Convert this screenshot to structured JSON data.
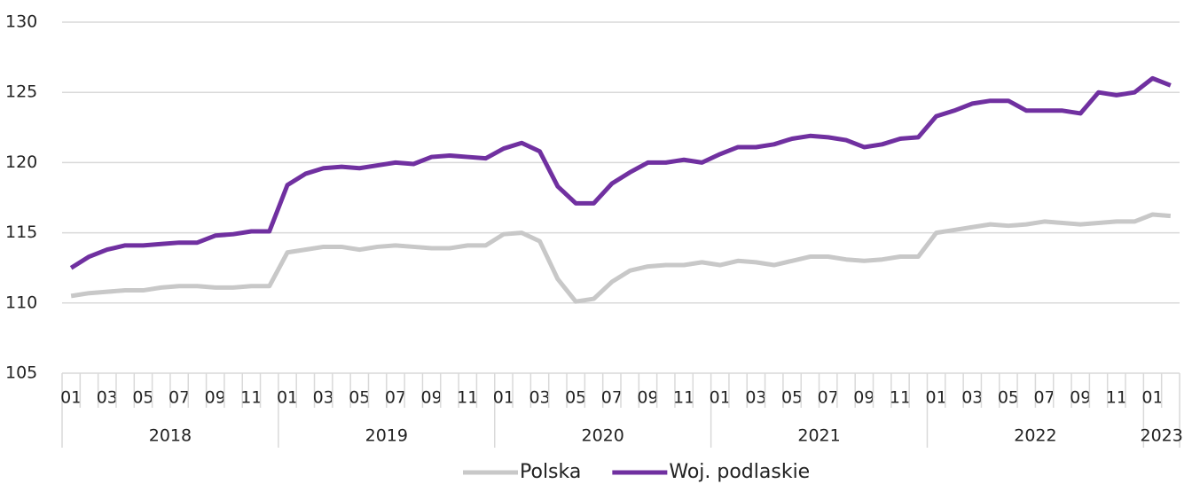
{
  "chart_data": {
    "type": "line",
    "categories": [
      "01",
      null,
      "03",
      null,
      "05",
      null,
      "07",
      null,
      "09",
      null,
      "11",
      null,
      "01",
      null,
      "03",
      null,
      "05",
      null,
      "07",
      null,
      "09",
      null,
      "11",
      null,
      "01",
      null,
      "03",
      null,
      "05",
      null,
      "07",
      null,
      "09",
      null,
      "11",
      null,
      "01",
      null,
      "03",
      null,
      "05",
      null,
      "07",
      null,
      "09",
      null,
      "11",
      null,
      "01",
      null,
      "03",
      null,
      "05",
      null,
      "07",
      null,
      "09",
      null,
      "11",
      null,
      "01",
      null
    ],
    "x_groups": [
      "2018",
      "2019",
      "2020",
      "2021",
      "2022",
      "2023"
    ],
    "series": [
      {
        "name": "Polska",
        "color": "#c8c8c8",
        "values": [
          110.5,
          110.7,
          110.8,
          110.9,
          110.9,
          111.1,
          111.2,
          111.2,
          111.1,
          111.1,
          111.2,
          111.2,
          113.6,
          113.8,
          114.0,
          114.0,
          113.8,
          114.0,
          114.1,
          114.0,
          113.9,
          113.9,
          114.1,
          114.1,
          114.9,
          115.0,
          114.4,
          111.7,
          110.1,
          110.3,
          111.5,
          112.3,
          112.6,
          112.7,
          112.7,
          112.9,
          112.7,
          113.0,
          112.9,
          112.7,
          113.0,
          113.3,
          113.3,
          113.1,
          113.0,
          113.1,
          113.3,
          113.3,
          115.0,
          115.2,
          115.4,
          115.6,
          115.5,
          115.6,
          115.8,
          115.7,
          115.6,
          115.7,
          115.8,
          115.8,
          116.3,
          116.2
        ]
      },
      {
        "name": "Woj. podlaskie",
        "color": "#7030a0",
        "values": [
          112.5,
          113.3,
          113.8,
          114.1,
          114.1,
          114.2,
          114.3,
          114.3,
          114.8,
          114.9,
          115.1,
          115.1,
          118.4,
          119.2,
          119.6,
          119.7,
          119.6,
          119.8,
          120.0,
          119.9,
          120.4,
          120.5,
          120.4,
          120.3,
          121.0,
          121.4,
          120.8,
          118.3,
          117.1,
          117.1,
          118.5,
          119.3,
          120.0,
          120.0,
          120.2,
          120.0,
          120.6,
          121.1,
          121.1,
          121.3,
          121.7,
          121.9,
          121.8,
          121.6,
          121.1,
          121.3,
          121.7,
          121.8,
          123.3,
          123.7,
          124.2,
          124.4,
          124.4,
          123.7,
          123.7,
          123.7,
          123.5,
          125.0,
          124.8,
          125.0,
          126.0,
          125.5
        ]
      }
    ],
    "ylim": [
      105,
      130
    ],
    "yticks": [
      105,
      110,
      115,
      120,
      125,
      130
    ],
    "grid": true,
    "legend": "bottom"
  }
}
